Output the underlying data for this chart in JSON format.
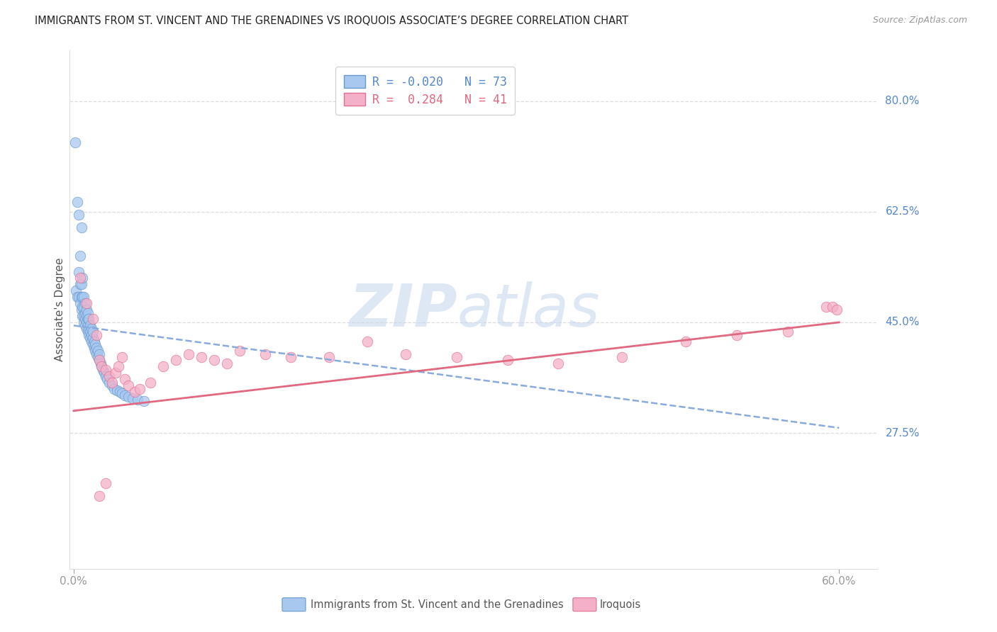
{
  "title": "IMMIGRANTS FROM ST. VINCENT AND THE GRENADINES VS IROQUOIS ASSOCIATE’S DEGREE CORRELATION CHART",
  "source": "Source: ZipAtlas.com",
  "ylabel": "Associate's Degree",
  "ytick_labels": [
    "80.0%",
    "62.5%",
    "45.0%",
    "27.5%"
  ],
  "ytick_values": [
    0.8,
    0.625,
    0.45,
    0.275
  ],
  "xlim": [
    -0.003,
    0.63
  ],
  "ylim": [
    0.06,
    0.88
  ],
  "blue_color": "#a8c8f0",
  "blue_edge_color": "#6699cc",
  "pink_color": "#f4b0c8",
  "pink_edge_color": "#e07090",
  "blue_line_color": "#88aadd",
  "pink_line_color": "#e06880",
  "watermark_zip_color": "#c8d8ee",
  "watermark_atlas_color": "#c8d8ee",
  "blue_scatter_x": [
    0.001,
    0.002,
    0.003,
    0.003,
    0.004,
    0.004,
    0.004,
    0.005,
    0.005,
    0.005,
    0.006,
    0.006,
    0.006,
    0.006,
    0.007,
    0.007,
    0.007,
    0.007,
    0.008,
    0.008,
    0.008,
    0.008,
    0.009,
    0.009,
    0.009,
    0.009,
    0.01,
    0.01,
    0.01,
    0.01,
    0.011,
    0.011,
    0.011,
    0.011,
    0.012,
    0.012,
    0.012,
    0.013,
    0.013,
    0.013,
    0.014,
    0.014,
    0.014,
    0.015,
    0.015,
    0.015,
    0.016,
    0.016,
    0.017,
    0.017,
    0.018,
    0.018,
    0.019,
    0.019,
    0.02,
    0.02,
    0.021,
    0.022,
    0.023,
    0.024,
    0.025,
    0.026,
    0.028,
    0.03,
    0.032,
    0.034,
    0.036,
    0.038,
    0.04,
    0.043,
    0.046,
    0.05,
    0.055
  ],
  "blue_scatter_y": [
    0.735,
    0.5,
    0.49,
    0.64,
    0.49,
    0.53,
    0.62,
    0.48,
    0.51,
    0.555,
    0.47,
    0.49,
    0.51,
    0.6,
    0.46,
    0.475,
    0.49,
    0.52,
    0.45,
    0.46,
    0.475,
    0.49,
    0.445,
    0.455,
    0.465,
    0.48,
    0.44,
    0.45,
    0.46,
    0.47,
    0.435,
    0.445,
    0.455,
    0.465,
    0.43,
    0.44,
    0.455,
    0.425,
    0.435,
    0.445,
    0.42,
    0.43,
    0.44,
    0.415,
    0.425,
    0.435,
    0.41,
    0.42,
    0.405,
    0.415,
    0.4,
    0.41,
    0.395,
    0.405,
    0.39,
    0.4,
    0.385,
    0.38,
    0.375,
    0.37,
    0.365,
    0.36,
    0.355,
    0.35,
    0.345,
    0.342,
    0.34,
    0.338,
    0.335,
    0.332,
    0.33,
    0.328,
    0.325
  ],
  "pink_scatter_x": [
    0.005,
    0.01,
    0.015,
    0.018,
    0.02,
    0.022,
    0.025,
    0.028,
    0.03,
    0.033,
    0.035,
    0.038,
    0.04,
    0.043,
    0.048,
    0.052,
    0.06,
    0.07,
    0.08,
    0.09,
    0.1,
    0.11,
    0.12,
    0.13,
    0.15,
    0.17,
    0.2,
    0.23,
    0.26,
    0.3,
    0.34,
    0.38,
    0.43,
    0.48,
    0.52,
    0.56,
    0.59,
    0.595,
    0.598,
    0.02,
    0.025
  ],
  "pink_scatter_y": [
    0.52,
    0.48,
    0.455,
    0.43,
    0.39,
    0.38,
    0.375,
    0.365,
    0.355,
    0.37,
    0.38,
    0.395,
    0.36,
    0.35,
    0.34,
    0.345,
    0.355,
    0.38,
    0.39,
    0.4,
    0.395,
    0.39,
    0.385,
    0.405,
    0.4,
    0.395,
    0.395,
    0.42,
    0.4,
    0.395,
    0.39,
    0.385,
    0.395,
    0.42,
    0.43,
    0.435,
    0.475,
    0.475,
    0.47,
    0.175,
    0.195
  ],
  "blue_trendline_x": [
    0.0,
    0.6
  ],
  "blue_trendline_y": [
    0.445,
    0.283
  ],
  "pink_trendline_x": [
    0.0,
    0.6
  ],
  "pink_trendline_y": [
    0.31,
    0.45
  ]
}
